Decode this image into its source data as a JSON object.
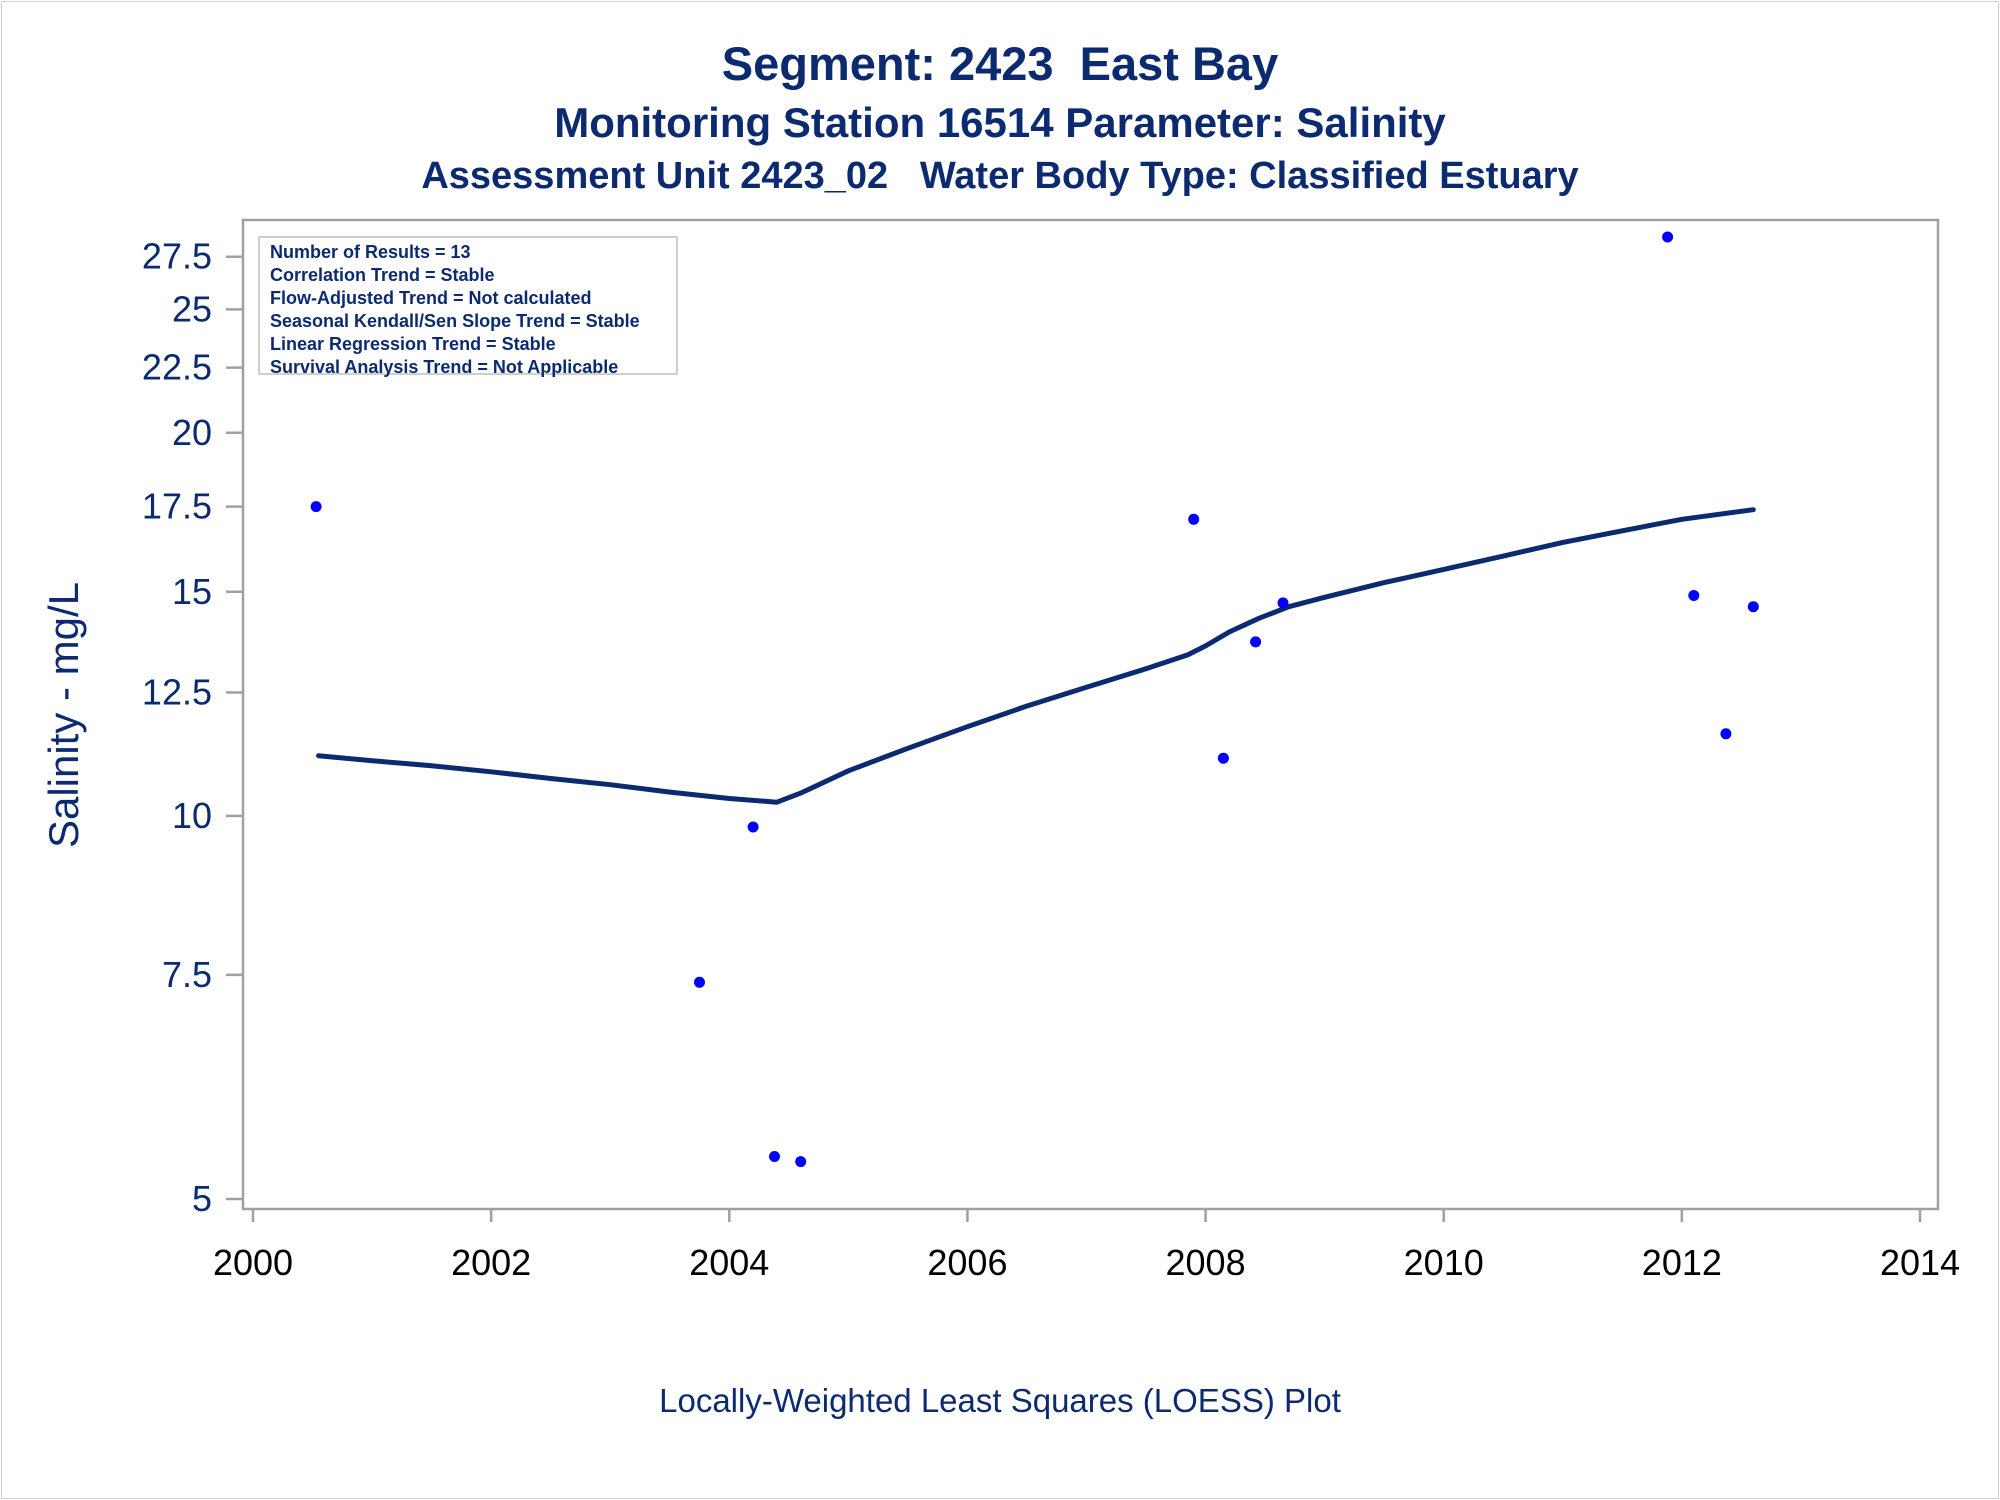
{
  "titles": {
    "line1": "Segment: 2423  East Bay",
    "line2": "Monitoring Station 16514 Parameter: Salinity",
    "line3": "Assessment Unit 2423_02   Water Body Type: Classified Estuary"
  },
  "stats_box": [
    "Number of Results = 13",
    "Correlation Trend = Stable",
    "Flow-Adjusted Trend = Not calculated",
    "Seasonal Kendall/Sen Slope Trend = Stable",
    "Linear Regression Trend = Stable",
    "Survival Analysis Trend = Not Applicable"
  ],
  "footnote": "Locally-Weighted Least Squares (LOESS) Plot",
  "colors": {
    "text": "#0b2a6f",
    "points": "#0000ff",
    "loess_line": "#0b2a6f",
    "axis": "#a0a0a0"
  },
  "chart_data": {
    "type": "scatter",
    "title": "Segment: 2423  East Bay",
    "xlabel": "",
    "ylabel": "Salinity - mg/L",
    "y_scale": "log",
    "xlim": [
      2000,
      2014
    ],
    "ylim": [
      5,
      28.5
    ],
    "x_ticks": [
      2000,
      2002,
      2004,
      2006,
      2008,
      2010,
      2012,
      2014
    ],
    "y_ticks": [
      5,
      7.5,
      10,
      12.5,
      15,
      17.5,
      20,
      22.5,
      25,
      27.5
    ],
    "grid": false,
    "legend": "none",
    "series": [
      {
        "kind": "points",
        "x": [
          2000.53,
          2003.75,
          2004.2,
          2004.38,
          2004.6,
          2007.9,
          2008.15,
          2008.42,
          2008.65,
          2011.88,
          2012.1,
          2012.37,
          2012.6
        ],
        "y": [
          17.5,
          7.4,
          9.8,
          5.4,
          5.35,
          17.1,
          11.1,
          13.7,
          14.7,
          28.5,
          14.9,
          11.6,
          14.6
        ]
      },
      {
        "kind": "loess",
        "x": [
          2000.55,
          2001.0,
          2001.5,
          2002.0,
          2002.5,
          2003.0,
          2003.5,
          2004.0,
          2004.4,
          2004.6,
          2005.0,
          2005.5,
          2006.0,
          2006.5,
          2007.0,
          2007.5,
          2007.85,
          2008.0,
          2008.2,
          2008.45,
          2008.7,
          2009.0,
          2009.5,
          2010.0,
          2010.5,
          2011.0,
          2011.5,
          2012.0,
          2012.6
        ],
        "y": [
          11.15,
          11.05,
          10.95,
          10.83,
          10.7,
          10.58,
          10.44,
          10.32,
          10.25,
          10.42,
          10.85,
          11.3,
          11.75,
          12.2,
          12.62,
          13.05,
          13.38,
          13.6,
          13.95,
          14.3,
          14.6,
          14.85,
          15.25,
          15.62,
          16.0,
          16.4,
          16.75,
          17.1,
          17.4
        ]
      }
    ]
  }
}
